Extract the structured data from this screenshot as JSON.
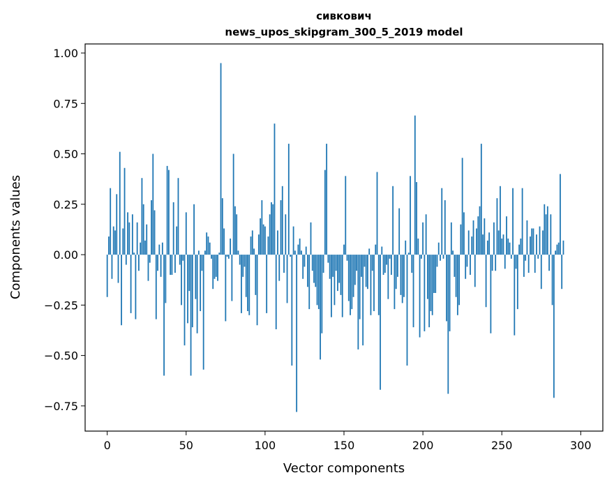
{
  "chart_data": {
    "type": "bar",
    "title_line1": "сивкович",
    "title_line2": "news_upos_skipgram_300_5_2019 model",
    "xlabel": "Vector components",
    "ylabel": "Components values",
    "xlim": [
      -14,
      314
    ],
    "ylim": [
      -0.875,
      1.045
    ],
    "x_ticks": [
      0,
      50,
      100,
      150,
      200,
      250,
      300
    ],
    "y_ticks": [
      1.0,
      0.75,
      0.5,
      0.25,
      0.0,
      -0.25,
      -0.5,
      -0.75
    ],
    "y_tick_labels": [
      "1.00",
      "0.75",
      "0.50",
      "0.25",
      "0.00",
      "−0.25",
      "−0.50",
      "−0.75"
    ],
    "bar_color": "#1f77b4",
    "grid": false,
    "values": [
      -0.21,
      0.09,
      0.33,
      -0.12,
      0.14,
      0.12,
      0.3,
      -0.14,
      0.51,
      -0.35,
      0.13,
      0.43,
      -0.05,
      0.21,
      0.16,
      -0.29,
      0.2,
      0.01,
      -0.32,
      0.16,
      -0.08,
      0.06,
      0.38,
      0.25,
      0.07,
      0.15,
      -0.13,
      -0.04,
      0.27,
      0.5,
      0.22,
      -0.32,
      -0.08,
      0.05,
      -0.11,
      0.06,
      -0.6,
      -0.24,
      0.44,
      0.42,
      -0.1,
      -0.1,
      0.26,
      -0.09,
      0.14,
      0.38,
      -0.05,
      -0.25,
      -0.03,
      -0.45,
      0.21,
      -0.34,
      -0.18,
      -0.6,
      -0.36,
      0.25,
      -0.22,
      -0.39,
      0.02,
      -0.28,
      -0.08,
      -0.57,
      0.02,
      0.11,
      0.09,
      0.06,
      -0.02,
      -0.17,
      -0.12,
      -0.11,
      -0.13,
      0.01,
      0.95,
      0.28,
      0.13,
      -0.33,
      -0.01,
      -0.02,
      0.08,
      -0.23,
      0.5,
      0.24,
      0.2,
      0.02,
      -0.05,
      -0.29,
      -0.11,
      -0.06,
      -0.21,
      -0.28,
      -0.3,
      0.09,
      0.12,
      0.03,
      -0.2,
      -0.35,
      0.1,
      0.18,
      0.27,
      0.15,
      0.14,
      -0.29,
      0.09,
      0.2,
      0.26,
      0.25,
      0.65,
      -0.37,
      0.12,
      -0.13,
      0.27,
      0.34,
      -0.09,
      0.2,
      -0.24,
      0.55,
      -0.01,
      -0.55,
      0.14,
      0.02,
      -0.78,
      0.05,
      0.08,
      0.02,
      -0.12,
      -0.06,
      0.04,
      -0.16,
      -0.27,
      0.16,
      -0.08,
      -0.14,
      -0.16,
      -0.25,
      -0.27,
      -0.52,
      -0.39,
      -0.09,
      0.42,
      0.55,
      -0.04,
      -0.12,
      -0.31,
      -0.11,
      -0.25,
      -0.08,
      -0.18,
      -0.14,
      -0.2,
      -0.31,
      0.05,
      0.39,
      -0.03,
      -0.23,
      -0.3,
      -0.27,
      -0.21,
      -0.15,
      -0.08,
      -0.47,
      -0.32,
      -0.11,
      -0.45,
      -0.06,
      -0.16,
      -0.17,
      0.03,
      -0.3,
      -0.08,
      -0.28,
      0.05,
      0.41,
      -0.3,
      -0.67,
      0.04,
      -0.1,
      -0.09,
      -0.05,
      -0.22,
      -0.02,
      -0.1,
      0.34,
      -0.27,
      -0.17,
      -0.11,
      0.23,
      -0.2,
      -0.24,
      -0.21,
      0.07,
      -0.55,
      0.01,
      0.39,
      -0.09,
      -0.36,
      0.69,
      0.36,
      0.08,
      -0.41,
      -0.02,
      0.16,
      -0.38,
      0.2,
      -0.22,
      -0.36,
      -0.28,
      -0.3,
      -0.19,
      -0.19,
      -0.06,
      0.06,
      -0.03,
      0.33,
      -0.02,
      0.27,
      -0.33,
      -0.69,
      -0.38,
      0.16,
      0.02,
      -0.11,
      -0.21,
      -0.3,
      -0.25,
      0.15,
      0.48,
      0.21,
      -0.12,
      -0.06,
      0.12,
      -0.1,
      0.09,
      0.17,
      -0.16,
      0.13,
      0.19,
      0.24,
      0.55,
      0.1,
      0.18,
      -0.26,
      0.07,
      0.11,
      -0.39,
      -0.08,
      0.16,
      -0.08,
      0.28,
      0.12,
      0.34,
      0.08,
      0.1,
      -0.07,
      0.19,
      0.08,
      0.06,
      -0.02,
      0.33,
      -0.4,
      -0.07,
      -0.27,
      0.05,
      0.08,
      0.33,
      -0.11,
      -0.03,
      0.17,
      -0.09,
      0.09,
      0.13,
      0.13,
      -0.09,
      0.1,
      -0.02,
      0.14,
      -0.17,
      0.12,
      0.25,
      0.2,
      0.24,
      -0.08,
      0.2,
      -0.25,
      -0.71,
      0.02,
      0.05,
      0.06,
      0.4,
      -0.17,
      0.07
    ]
  }
}
